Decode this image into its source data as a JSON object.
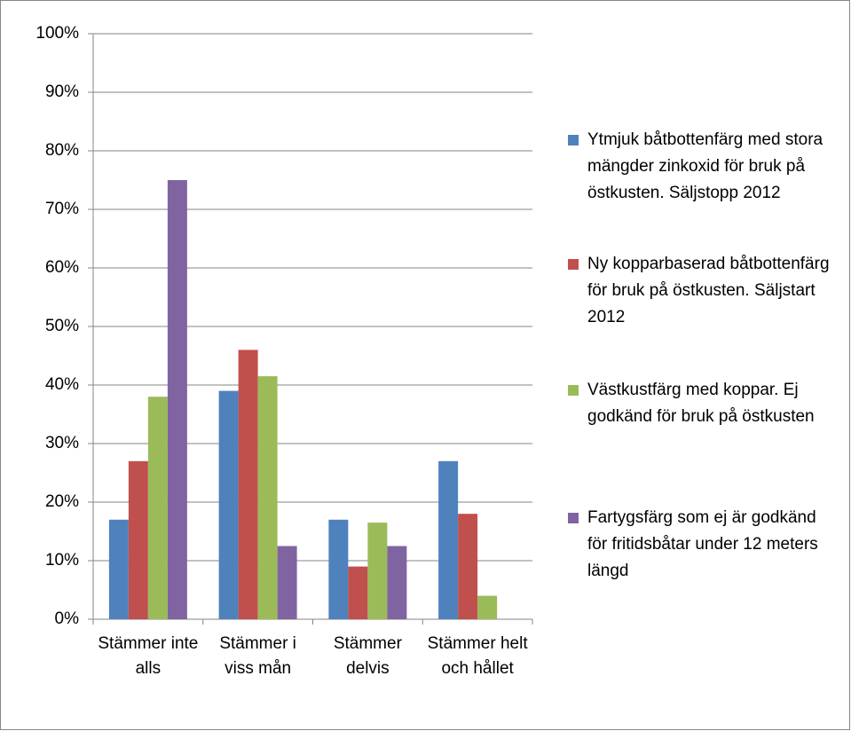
{
  "chart_data": {
    "type": "bar",
    "categories": [
      "Stämmer inte alls",
      "Stämmer i viss mån",
      "Stämmer delvis",
      "Stämmer helt och hållet"
    ],
    "series": [
      {
        "name": "Ytmjuk båtbottenfärg med stora mängder zinkoxid för bruk på östkusten. Säljstopp 2012",
        "color": "#4f81bd",
        "values": [
          17,
          39,
          17,
          27
        ]
      },
      {
        "name": "Ny kopparbaserad båtbottenfärg för bruk på östkusten. Säljstart 2012",
        "color": "#c0504d",
        "values": [
          27,
          46,
          9,
          18
        ]
      },
      {
        "name": "Västkustfärg med koppar. Ej godkänd för bruk på östkusten",
        "color": "#9bbb59",
        "values": [
          38,
          41.5,
          16.5,
          4
        ]
      },
      {
        "name": "Fartygsfärg som ej är godkänd för fritidsbåtar under 12 meters längd",
        "color": "#8064a2",
        "values": [
          75,
          12.5,
          12.5,
          0
        ]
      }
    ],
    "ylim": [
      0,
      100
    ],
    "yticks": [
      {
        "value": 0,
        "label": "0%"
      },
      {
        "value": 10,
        "label": "10%"
      },
      {
        "value": 20,
        "label": "20%"
      },
      {
        "value": 30,
        "label": "30%"
      },
      {
        "value": 40,
        "label": "40%"
      },
      {
        "value": 50,
        "label": "50%"
      },
      {
        "value": 60,
        "label": "60%"
      },
      {
        "value": 70,
        "label": "70%"
      },
      {
        "value": 80,
        "label": "80%"
      },
      {
        "value": 90,
        "label": "90%"
      },
      {
        "value": 100,
        "label": "100%"
      }
    ],
    "grid": true,
    "legend": "right"
  }
}
